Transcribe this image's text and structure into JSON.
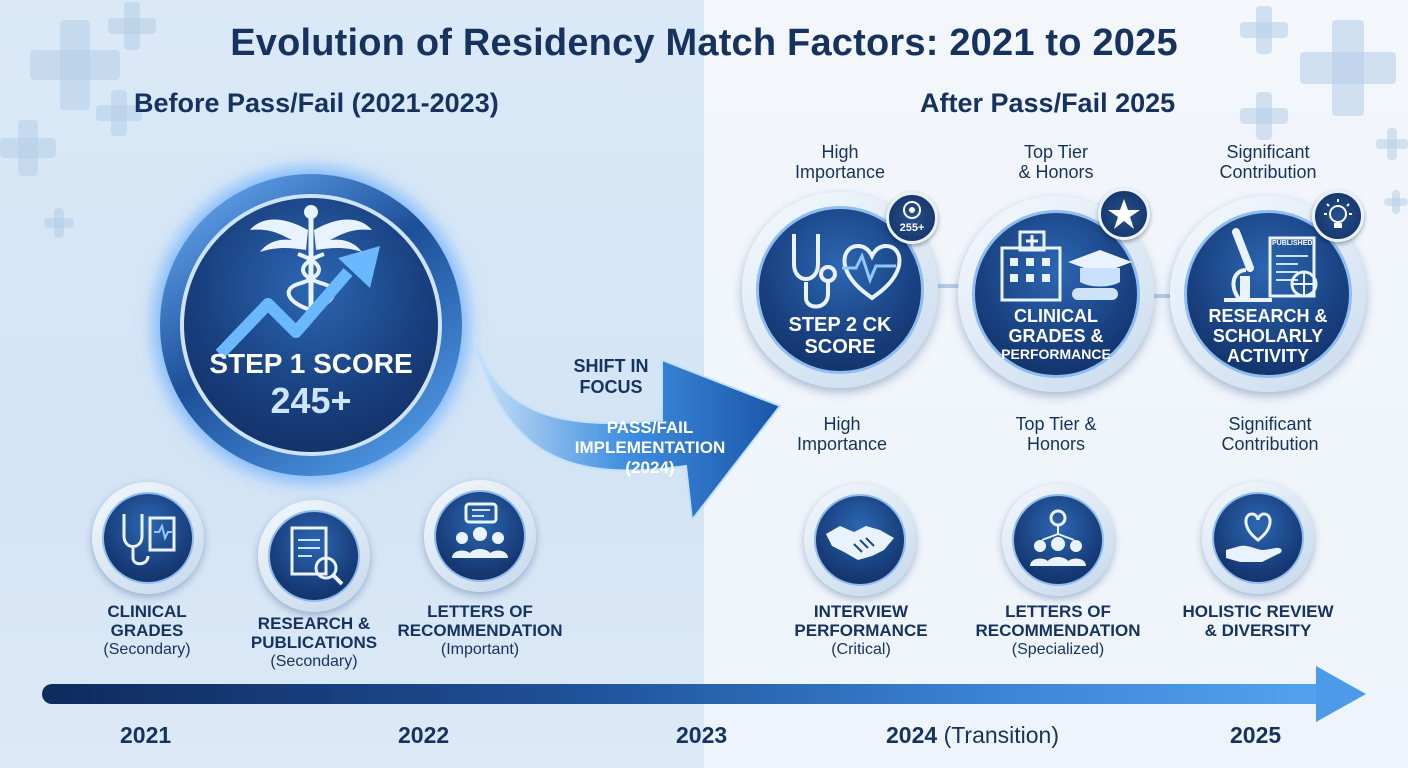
{
  "title": "Evolution of Residency Match Factors: 2021 to 2025",
  "before": {
    "heading": "Before Pass/Fail (2021-2023)",
    "main": {
      "line1": "STEP 1 SCORE",
      "line2": "245+"
    },
    "factors": [
      {
        "name": "CLINICAL",
        "name2": "GRADES",
        "note": "(Secondary)",
        "icon": "stethoscope-chart-icon"
      },
      {
        "name": "RESEARCH &",
        "name2": "PUBLICATIONS",
        "note": "(Secondary)",
        "icon": "document-search-icon"
      },
      {
        "name": "LETTERS OF",
        "name2": "RECOMMENDATION",
        "note": "(Important)",
        "icon": "group-chat-icon"
      }
    ]
  },
  "shift": {
    "line1": "SHIFT IN",
    "line2": "FOCUS",
    "line3": "PASS/FAIL",
    "line4": "IMPLEMENTATION",
    "line5": "(2024)"
  },
  "after": {
    "heading": "After Pass/Fail 2025",
    "top": [
      {
        "above1": "High",
        "above2": "Importance",
        "line1": "STEP 2 CK",
        "line2": "SCORE",
        "line3": "",
        "badge": "255+",
        "below1": "High",
        "below2": "Importance",
        "icon": "stethoscope-heart-icon"
      },
      {
        "above1": "Top Tier",
        "above2": "& Honors",
        "line1": "CLINICAL",
        "line2": "GRADES &",
        "line3": "PERFORMANCE",
        "badge": "",
        "below1": "Top Tier &",
        "below2": "Honors",
        "icon": "hospital-graduation-icon"
      },
      {
        "above1": "Significant",
        "above2": "Contribution",
        "line1": "RESEARCH &",
        "line2": "SCHOLARLY",
        "line3": "ACTIVITY",
        "badge": "",
        "below1": "Significant",
        "below2": "Contribution",
        "icon": "microscope-publication-icon",
        "paper_label": "PUBLISHED"
      }
    ],
    "factors": [
      {
        "name": "INTERVIEW",
        "name2": "PERFORMANCE",
        "note": "(Critical)",
        "icon": "handshake-icon"
      },
      {
        "name": "LETTERS OF",
        "name2": "RECOMMENDATION",
        "note": "(Specialized)",
        "icon": "people-network-icon"
      },
      {
        "name": "HOLISTIC REVIEW",
        "name2": "& DIVERSITY",
        "note": "",
        "icon": "heart-hand-icon"
      }
    ]
  },
  "timeline": {
    "years": [
      "2021",
      "2022",
      "2023",
      "2024",
      "2025"
    ],
    "transition_note": "(Transition)"
  },
  "colors": {
    "navy": "#16325f",
    "accent": "#3b86d6"
  }
}
